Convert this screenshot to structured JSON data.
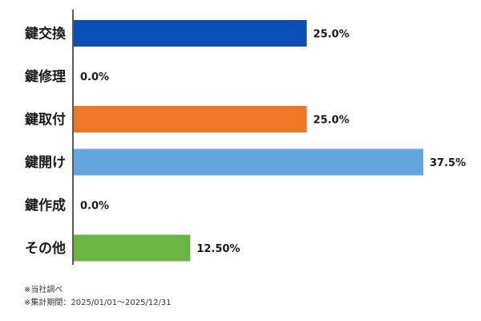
{
  "chart_data": {
    "type": "bar",
    "orientation": "horizontal",
    "categories": [
      "鍵交換",
      "鍵修理",
      "鍵取付",
      "鍵開け",
      "鍵作成",
      "その他"
    ],
    "values": [
      25.0,
      0.0,
      25.0,
      37.5,
      0.0,
      12.5
    ],
    "value_labels": [
      "25.0%",
      "0.0%",
      "25.0%",
      "37.5%",
      "0.0%",
      "12.50%"
    ],
    "colors": [
      "#0a4fb8",
      "#0a4fb8",
      "#ee7625",
      "#62a6e0",
      "#62a6e0",
      "#6ab444"
    ],
    "xlim": [
      0,
      37.5
    ],
    "grid": false,
    "legend": "none"
  },
  "notes": {
    "source": "※当社調べ",
    "period": "※集計期間：2025/01/01〜2025/12/31"
  }
}
